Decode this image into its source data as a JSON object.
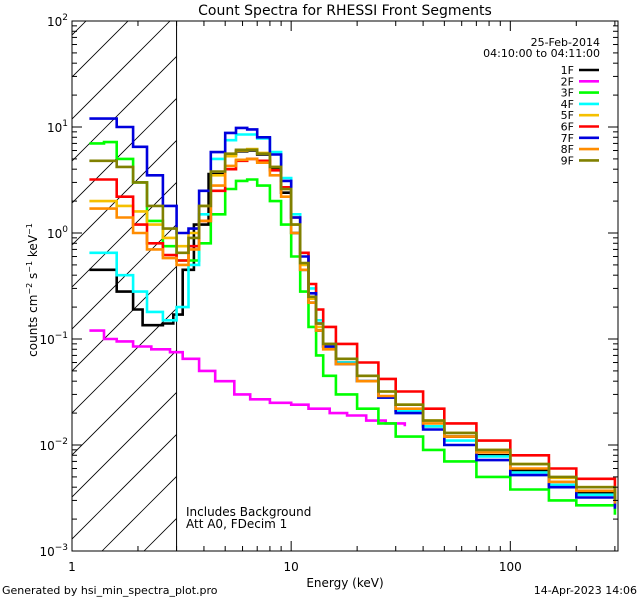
{
  "chart_data": {
    "type": "line",
    "title": "Count Spectra for RHESSI Front Segments",
    "date": "25-Feb-2014",
    "time_range": "04:10:00 to 04:11:00",
    "xlabel": "Energy (keV)",
    "ylabel_parts": {
      "base": "counts cm",
      "exp1": "−2",
      "mid": " s",
      "exp2": "−1",
      "end": " keV",
      "exp3": "−1"
    },
    "x_scale": "log",
    "y_scale": "log",
    "xlim": [
      1,
      310
    ],
    "ylim": [
      0.001,
      100
    ],
    "x_ticks": [
      {
        "value": 1,
        "label": "1"
      },
      {
        "value": 10,
        "label": "10"
      },
      {
        "value": 100,
        "label": "100"
      }
    ],
    "y_ticks": [
      {
        "value": 0.001,
        "base": "10",
        "exp": "−3"
      },
      {
        "value": 0.01,
        "base": "10",
        "exp": "−2"
      },
      {
        "value": 0.1,
        "base": "10",
        "exp": "−1"
      },
      {
        "value": 1,
        "base": "10",
        "exp": "0"
      },
      {
        "value": 10,
        "base": "10",
        "exp": "1"
      },
      {
        "value": 100,
        "base": "10",
        "exp": "2"
      }
    ],
    "hatched_region": {
      "x_from": 1,
      "x_to": 3
    },
    "annotations": [
      "Includes Background",
      "Att A0, FDecim 1"
    ],
    "legend_position": "top-right",
    "series": [
      {
        "name": "1F",
        "color": "#000000",
        "points": [
          [
            1.2,
            0.45
          ],
          [
            1.4,
            0.45
          ],
          [
            1.6,
            0.28
          ],
          [
            1.9,
            0.19
          ],
          [
            2.1,
            0.135
          ],
          [
            2.6,
            0.14
          ],
          [
            2.9,
            0.17
          ],
          [
            3.2,
            0.45
          ],
          [
            3.6,
            1.2
          ],
          [
            4.2,
            3.6
          ],
          [
            5,
            5.5
          ],
          [
            5.6,
            5.9
          ],
          [
            6.3,
            6.0
          ],
          [
            7,
            5.5
          ],
          [
            8,
            4.0
          ],
          [
            9,
            2.4
          ],
          [
            10,
            1.0
          ],
          [
            11,
            0.45
          ],
          [
            12,
            0.22
          ],
          [
            13,
            0.12
          ],
          [
            14,
            0.085
          ],
          [
            16,
            0.06
          ],
          [
            20,
            0.04
          ],
          [
            25,
            0.028
          ],
          [
            30,
            0.021
          ],
          [
            40,
            0.015
          ],
          [
            50,
            0.012
          ],
          [
            70,
            0.008
          ],
          [
            100,
            0.0058
          ],
          [
            150,
            0.0042
          ],
          [
            200,
            0.0035
          ],
          [
            300,
            0.0026
          ]
        ]
      },
      {
        "name": "2F",
        "color": "#ff00ff",
        "points": [
          [
            1.2,
            0.12
          ],
          [
            1.4,
            0.1
          ],
          [
            1.6,
            0.095
          ],
          [
            1.9,
            0.085
          ],
          [
            2.3,
            0.08
          ],
          [
            2.8,
            0.075
          ],
          [
            3.2,
            0.065
          ],
          [
            3.8,
            0.05
          ],
          [
            4.5,
            0.04
          ],
          [
            5.5,
            0.03
          ],
          [
            6.5,
            0.027
          ],
          [
            8,
            0.025
          ],
          [
            10,
            0.024
          ],
          [
            12,
            0.022
          ],
          [
            15,
            0.02
          ],
          [
            18,
            0.019
          ],
          [
            22,
            0.017
          ],
          [
            27,
            0.016
          ],
          [
            33,
            0.015
          ]
        ]
      },
      {
        "name": "3F",
        "color": "#00ff00",
        "points": [
          [
            1.2,
            7.0
          ],
          [
            1.4,
            7.2
          ],
          [
            1.6,
            5.0
          ],
          [
            1.9,
            3.0
          ],
          [
            2.2,
            1.3
          ],
          [
            2.6,
            0.75
          ],
          [
            3,
            0.55
          ],
          [
            3.4,
            0.55
          ],
          [
            3.8,
            0.8
          ],
          [
            4.3,
            1.5
          ],
          [
            5,
            2.6
          ],
          [
            5.6,
            3.1
          ],
          [
            6.3,
            3.2
          ],
          [
            7,
            2.8
          ],
          [
            8,
            2.0
          ],
          [
            9,
            1.2
          ],
          [
            10,
            0.6
          ],
          [
            11,
            0.28
          ],
          [
            12,
            0.13
          ],
          [
            13,
            0.07
          ],
          [
            14,
            0.045
          ],
          [
            16,
            0.03
          ],
          [
            20,
            0.022
          ],
          [
            25,
            0.016
          ],
          [
            30,
            0.012
          ],
          [
            40,
            0.009
          ],
          [
            50,
            0.007
          ],
          [
            70,
            0.005
          ],
          [
            100,
            0.0038
          ],
          [
            150,
            0.003
          ],
          [
            200,
            0.0027
          ],
          [
            300,
            0.0022
          ]
        ]
      },
      {
        "name": "4F",
        "color": "#00ffff",
        "points": [
          [
            1.2,
            0.65
          ],
          [
            1.4,
            0.65
          ],
          [
            1.6,
            0.4
          ],
          [
            1.9,
            0.28
          ],
          [
            2.2,
            0.18
          ],
          [
            2.6,
            0.15
          ],
          [
            3,
            0.2
          ],
          [
            3.4,
            0.5
          ],
          [
            3.8,
            1.5
          ],
          [
            4.3,
            5.0
          ],
          [
            5,
            7.5
          ],
          [
            5.6,
            8.5
          ],
          [
            6.3,
            8.5
          ],
          [
            7,
            7.8
          ],
          [
            8,
            5.8
          ],
          [
            9,
            3.3
          ],
          [
            10,
            1.5
          ],
          [
            11,
            0.65
          ],
          [
            12,
            0.3
          ],
          [
            13,
            0.15
          ],
          [
            14,
            0.09
          ],
          [
            16,
            0.06
          ],
          [
            20,
            0.04
          ],
          [
            25,
            0.028
          ],
          [
            30,
            0.021
          ],
          [
            40,
            0.015
          ],
          [
            50,
            0.011
          ],
          [
            70,
            0.0078
          ],
          [
            100,
            0.0055
          ],
          [
            150,
            0.0042
          ],
          [
            200,
            0.0034
          ],
          [
            300,
            0.0026
          ]
        ]
      },
      {
        "name": "5F",
        "color": "#f5c000",
        "points": [
          [
            1.2,
            2.0
          ],
          [
            1.4,
            2.0
          ],
          [
            1.6,
            1.8
          ],
          [
            1.9,
            1.6
          ],
          [
            2.2,
            1.2
          ],
          [
            2.6,
            0.9
          ],
          [
            3,
            0.75
          ],
          [
            3.4,
            1.0
          ],
          [
            3.8,
            1.8
          ],
          [
            4.3,
            3.5
          ],
          [
            5,
            5.3
          ],
          [
            5.6,
            6.0
          ],
          [
            6.3,
            6.2
          ],
          [
            7,
            5.7
          ],
          [
            8,
            4.2
          ],
          [
            9,
            2.6
          ],
          [
            10,
            1.2
          ],
          [
            11,
            0.5
          ],
          [
            12,
            0.24
          ],
          [
            13,
            0.13
          ],
          [
            14,
            0.09
          ],
          [
            16,
            0.065
          ],
          [
            20,
            0.045
          ],
          [
            25,
            0.032
          ],
          [
            30,
            0.024
          ],
          [
            40,
            0.017
          ],
          [
            50,
            0.013
          ],
          [
            70,
            0.009
          ],
          [
            100,
            0.0066
          ],
          [
            150,
            0.0049
          ],
          [
            200,
            0.004
          ],
          [
            300,
            0.003
          ]
        ]
      },
      {
        "name": "6F",
        "color": "#ff0000",
        "points": [
          [
            1.2,
            3.2
          ],
          [
            1.4,
            3.2
          ],
          [
            1.6,
            2.2
          ],
          [
            1.9,
            1.2
          ],
          [
            2.2,
            0.8
          ],
          [
            2.6,
            0.62
          ],
          [
            3,
            0.55
          ],
          [
            3.4,
            0.75
          ],
          [
            3.8,
            1.3
          ],
          [
            4.3,
            2.5
          ],
          [
            5,
            4.0
          ],
          [
            5.6,
            4.8
          ],
          [
            6.3,
            5.0
          ],
          [
            7,
            4.8
          ],
          [
            8,
            3.9
          ],
          [
            9,
            2.7
          ],
          [
            10,
            1.4
          ],
          [
            11,
            0.65
          ],
          [
            12,
            0.33
          ],
          [
            13,
            0.19
          ],
          [
            14,
            0.13
          ],
          [
            16,
            0.09
          ],
          [
            20,
            0.06
          ],
          [
            25,
            0.042
          ],
          [
            30,
            0.032
          ],
          [
            40,
            0.022
          ],
          [
            50,
            0.016
          ],
          [
            70,
            0.011
          ],
          [
            100,
            0.008
          ],
          [
            150,
            0.006
          ],
          [
            200,
            0.0048
          ],
          [
            300,
            0.0035
          ]
        ]
      },
      {
        "name": "7F",
        "color": "#0000dd",
        "points": [
          [
            1.2,
            12
          ],
          [
            1.4,
            12
          ],
          [
            1.6,
            10
          ],
          [
            1.9,
            6.5
          ],
          [
            2.2,
            3.5
          ],
          [
            2.6,
            1.8
          ],
          [
            3,
            1.0
          ],
          [
            3.4,
            1.1
          ],
          [
            3.8,
            2.5
          ],
          [
            4.3,
            5.8
          ],
          [
            5,
            8.8
          ],
          [
            5.6,
            9.8
          ],
          [
            6.3,
            9.5
          ],
          [
            7,
            8.0
          ],
          [
            8,
            5.5
          ],
          [
            9,
            3.1
          ],
          [
            10,
            1.4
          ],
          [
            11,
            0.6
          ],
          [
            12,
            0.27
          ],
          [
            13,
            0.14
          ],
          [
            14,
            0.085
          ],
          [
            16,
            0.058
          ],
          [
            20,
            0.04
          ],
          [
            25,
            0.028
          ],
          [
            30,
            0.02
          ],
          [
            40,
            0.014
          ],
          [
            50,
            0.01
          ],
          [
            70,
            0.0072
          ],
          [
            100,
            0.0052
          ],
          [
            150,
            0.004
          ],
          [
            200,
            0.0032
          ],
          [
            300,
            0.0025
          ]
        ]
      },
      {
        "name": "8F",
        "color": "#ff8c00",
        "points": [
          [
            1.2,
            1.7
          ],
          [
            1.4,
            1.7
          ],
          [
            1.6,
            1.4
          ],
          [
            1.9,
            1.0
          ],
          [
            2.2,
            0.7
          ],
          [
            2.6,
            0.58
          ],
          [
            3,
            0.5
          ],
          [
            3.4,
            0.7
          ],
          [
            3.8,
            1.3
          ],
          [
            4.3,
            2.8
          ],
          [
            5,
            4.3
          ],
          [
            5.6,
            4.9
          ],
          [
            6.3,
            5.0
          ],
          [
            7,
            4.6
          ],
          [
            8,
            3.5
          ],
          [
            9,
            2.2
          ],
          [
            10,
            1.0
          ],
          [
            11,
            0.45
          ],
          [
            12,
            0.22
          ],
          [
            13,
            0.12
          ],
          [
            14,
            0.08
          ],
          [
            16,
            0.058
          ],
          [
            20,
            0.04
          ],
          [
            25,
            0.029
          ],
          [
            30,
            0.022
          ],
          [
            40,
            0.016
          ],
          [
            50,
            0.012
          ],
          [
            70,
            0.0085
          ],
          [
            100,
            0.006
          ],
          [
            150,
            0.0045
          ],
          [
            200,
            0.0037
          ],
          [
            300,
            0.0028
          ]
        ]
      },
      {
        "name": "9F",
        "color": "#808000",
        "points": [
          [
            1.2,
            4.8
          ],
          [
            1.4,
            4.8
          ],
          [
            1.6,
            4.2
          ],
          [
            1.9,
            3.0
          ],
          [
            2.2,
            1.8
          ],
          [
            2.6,
            1.1
          ],
          [
            3,
            0.65
          ],
          [
            3.4,
            0.9
          ],
          [
            3.8,
            1.8
          ],
          [
            4.3,
            3.8
          ],
          [
            5,
            5.6
          ],
          [
            5.6,
            6.1
          ],
          [
            6.3,
            6.1
          ],
          [
            7,
            5.6
          ],
          [
            8,
            4.2
          ],
          [
            9,
            2.6
          ],
          [
            10,
            1.2
          ],
          [
            11,
            0.52
          ],
          [
            12,
            0.25
          ],
          [
            13,
            0.14
          ],
          [
            14,
            0.09
          ],
          [
            16,
            0.065
          ],
          [
            20,
            0.045
          ],
          [
            25,
            0.032
          ],
          [
            30,
            0.024
          ],
          [
            40,
            0.017
          ],
          [
            50,
            0.013
          ],
          [
            70,
            0.009
          ],
          [
            100,
            0.0066
          ],
          [
            150,
            0.005
          ],
          [
            200,
            0.004
          ],
          [
            300,
            0.003
          ]
        ]
      }
    ]
  },
  "footer": {
    "generated_by": "Generated by hsi_min_spectra_plot.pro",
    "timestamp": "14-Apr-2023 14:06"
  }
}
